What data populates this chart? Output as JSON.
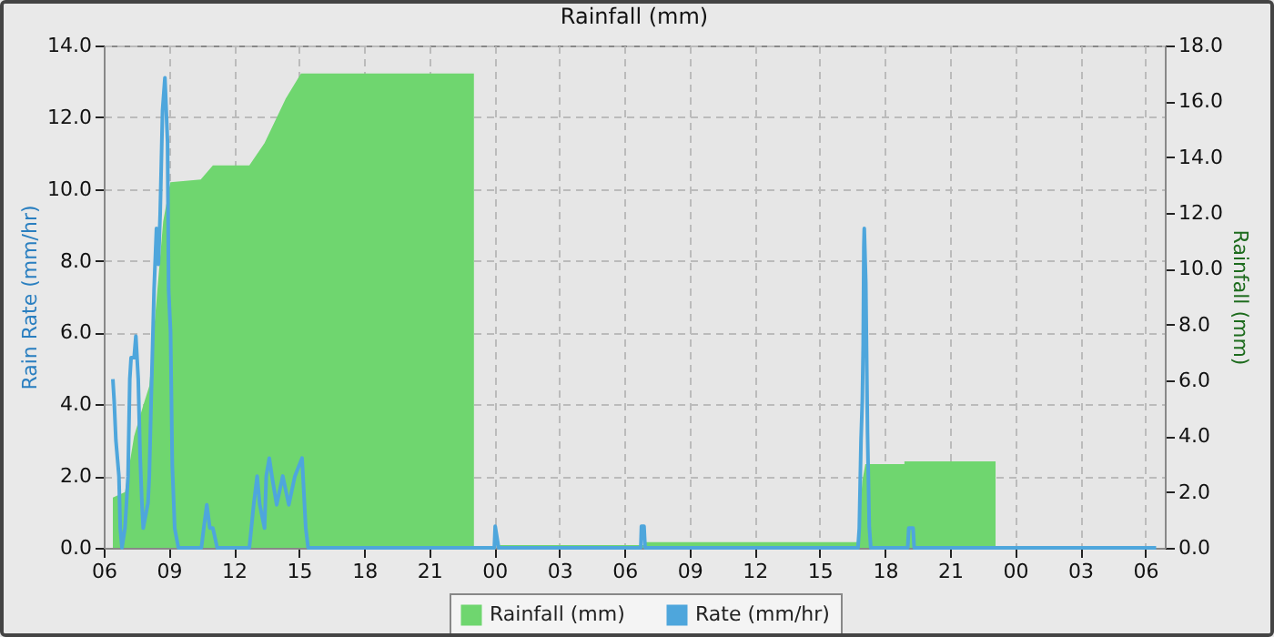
{
  "chart_data": {
    "type": "line",
    "title": "Rainfall (mm)",
    "ylabel": "Rain Rate (mm/hr)",
    "y2label": "Rainfall (mm)",
    "xlim": [
      6,
      54.9
    ],
    "xticks": [
      {
        "value": 6,
        "label": "06"
      },
      {
        "value": 9,
        "label": "09"
      },
      {
        "value": 12,
        "label": "12"
      },
      {
        "value": 15,
        "label": "15"
      },
      {
        "value": 18,
        "label": "18"
      },
      {
        "value": 21,
        "label": "21"
      },
      {
        "value": 24,
        "label": "00"
      },
      {
        "value": 27,
        "label": "03"
      },
      {
        "value": 30,
        "label": "06"
      },
      {
        "value": 33,
        "label": "09"
      },
      {
        "value": 36,
        "label": "12"
      },
      {
        "value": 39,
        "label": "15"
      },
      {
        "value": 42,
        "label": "18"
      },
      {
        "value": 45,
        "label": "21"
      },
      {
        "value": 48,
        "label": "00"
      },
      {
        "value": 51,
        "label": "03"
      },
      {
        "value": 54,
        "label": "06"
      }
    ],
    "ylim": [
      0,
      14
    ],
    "yticks": [
      {
        "value": 0,
        "label": "0.0"
      },
      {
        "value": 2,
        "label": "2.0"
      },
      {
        "value": 4,
        "label": "4.0"
      },
      {
        "value": 6,
        "label": "6.0"
      },
      {
        "value": 8,
        "label": "8.0"
      },
      {
        "value": 10,
        "label": "10.0"
      },
      {
        "value": 12,
        "label": "12.0"
      },
      {
        "value": 14,
        "label": "14.0"
      }
    ],
    "y2lim": [
      0,
      18
    ],
    "y2ticks": [
      {
        "value": 0,
        "label": "0.0"
      },
      {
        "value": 2,
        "label": "2.0"
      },
      {
        "value": 4,
        "label": "4.0"
      },
      {
        "value": 6,
        "label": "6.0"
      },
      {
        "value": 8,
        "label": "8.0"
      },
      {
        "value": 10,
        "label": "10.0"
      },
      {
        "value": 12,
        "label": "12.0"
      },
      {
        "value": 14,
        "label": "14.0"
      },
      {
        "value": 16,
        "label": "16.0"
      },
      {
        "value": 18,
        "label": "18.0"
      }
    ],
    "grid": true,
    "legend": "bottom",
    "line_style": "solid",
    "series": [
      {
        "name": "Rainfall (mm)",
        "type": "area",
        "axis": "y2",
        "color": "#6fd66f",
        "x": [
          6.42,
          6.42,
          6.98,
          7.4,
          7.82,
          8.1,
          8.38,
          8.74,
          9.07,
          10.47,
          11.03,
          12.71,
          13.41,
          14.39,
          15.09,
          23.06,
          23.06,
          24.23,
          24.23,
          30.94,
          30.94,
          40.76,
          40.96,
          41.1,
          42.9,
          42.9,
          47.1,
          47.1
        ],
        "values": [
          0,
          1.8,
          2.0,
          4.0,
          5.1,
          5.8,
          8.4,
          11.7,
          13.1,
          13.2,
          13.7,
          13.7,
          14.5,
          16.1,
          17.0,
          17.0,
          0,
          0,
          0.1,
          0.1,
          0.2,
          0.2,
          2.4,
          3.0,
          3.0,
          3.1,
          3.1,
          0
        ]
      },
      {
        "name": "Rate (mm/hr)",
        "type": "line",
        "color": "#4ea6dc",
        "x": [
          6.42,
          6.48,
          6.56,
          6.7,
          6.76,
          6.84,
          6.98,
          7.12,
          7.2,
          7.26,
          7.4,
          7.48,
          7.59,
          7.68,
          7.76,
          7.82,
          8.04,
          8.1,
          8.18,
          8.32,
          8.43,
          8.52,
          8.6,
          8.71,
          8.82,
          8.94,
          8.99,
          9.08,
          9.16,
          9.27,
          9.44,
          10.5,
          10.61,
          10.75,
          10.89,
          11.03,
          11.23,
          12.71,
          12.91,
          13.07,
          13.19,
          13.41,
          13.49,
          13.63,
          13.75,
          13.97,
          14.25,
          14.53,
          14.81,
          15.14,
          15.31,
          15.42,
          24.0,
          24.04,
          24.2,
          30.75,
          30.78,
          30.9,
          30.95,
          40.76,
          40.82,
          40.9,
          40.96,
          41.0,
          41.03,
          41.05,
          41.12,
          41.2,
          41.28,
          41.35,
          43.05,
          43.1,
          43.3,
          43.35,
          54.5
        ],
        "values": [
          4.7,
          4.1,
          3.0,
          2.0,
          0.55,
          0,
          0.55,
          2.0,
          4.7,
          5.3,
          5.3,
          5.9,
          4.7,
          2.5,
          1.25,
          0.55,
          1.25,
          2.0,
          4.0,
          7.2,
          8.9,
          7.9,
          9.3,
          12.2,
          13.1,
          11.3,
          7.2,
          6.0,
          2.3,
          0.55,
          0,
          0,
          0.55,
          1.2,
          0.55,
          0.55,
          0,
          0,
          1.2,
          2.0,
          1.2,
          0.55,
          2.0,
          2.5,
          2.0,
          1.2,
          2.0,
          1.2,
          2.0,
          2.5,
          0.55,
          0,
          0,
          0.6,
          0,
          0,
          0.6,
          0.6,
          0,
          0,
          0.55,
          3.0,
          4.1,
          5.65,
          8.4,
          8.9,
          7.4,
          3.2,
          0.6,
          0,
          0,
          0.55,
          0.55,
          0,
          0
        ]
      }
    ]
  }
}
